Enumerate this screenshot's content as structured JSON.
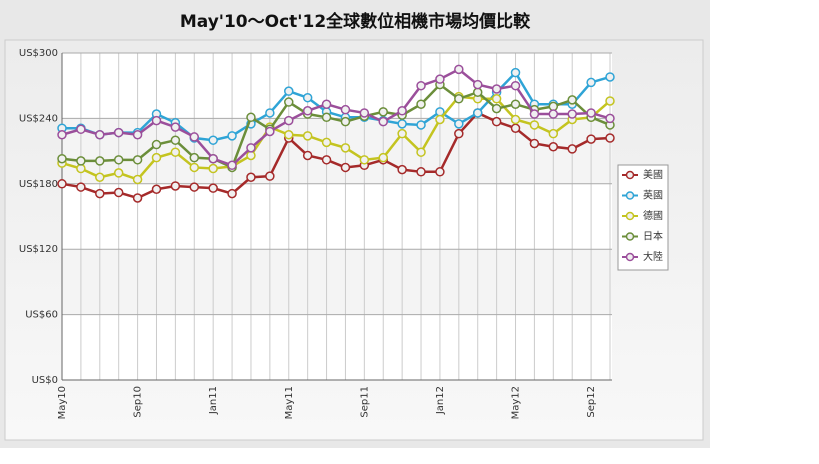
{
  "chart_data": {
    "type": "line",
    "title": "May'10～Oct'12全球數位相機市場均價比較",
    "categories": [
      "May10",
      null,
      null,
      null,
      "Sep10",
      null,
      null,
      null,
      "Jan11",
      null,
      null,
      null,
      "May11",
      null,
      null,
      null,
      "Sep11",
      null,
      null,
      null,
      "Jan12",
      null,
      null,
      null,
      "May12",
      null,
      null,
      null,
      "Sep12",
      null
    ],
    "ylim": [
      0,
      300
    ],
    "yticks": [
      {
        "value": 0,
        "label": "US$0"
      },
      {
        "value": 60,
        "label": "US$60"
      },
      {
        "value": 120,
        "label": "US$120"
      },
      {
        "value": 180,
        "label": "US$180"
      },
      {
        "value": 240,
        "label": "US$240"
      },
      {
        "value": 300,
        "label": "US$300"
      }
    ],
    "grid": true,
    "legend": "right",
    "series": [
      {
        "name": "美國",
        "color": "#a52a2a",
        "values": [
          180,
          177,
          171,
          172,
          167,
          175,
          178,
          177,
          176,
          171,
          186,
          187,
          222,
          206,
          202,
          195,
          197,
          202,
          193,
          191,
          191,
          226,
          245,
          237,
          231,
          217,
          214,
          212,
          221,
          222
        ]
      },
      {
        "name": "英國",
        "color": "#2fa4d6",
        "values": [
          231,
          231,
          225,
          227,
          227,
          244,
          236,
          222,
          220,
          224,
          235,
          245,
          265,
          259,
          246,
          241,
          241,
          238,
          235,
          234,
          246,
          235,
          245,
          264,
          282,
          253,
          253,
          253,
          273,
          278
        ]
      },
      {
        "name": "德國",
        "color": "#c4c420",
        "values": [
          199,
          194,
          186,
          190,
          184,
          204,
          209,
          195,
          194,
          196,
          206,
          232,
          225,
          224,
          218,
          213,
          202,
          204,
          226,
          209,
          239,
          260,
          258,
          258,
          239,
          234,
          226,
          239,
          241,
          256
        ]
      },
      {
        "name": "日本",
        "color": "#6b8e3a",
        "values": [
          203,
          201,
          201,
          202,
          202,
          216,
          220,
          204,
          203,
          195,
          241,
          230,
          255,
          244,
          241,
          237,
          242,
          246,
          243,
          253,
          271,
          258,
          264,
          249,
          253,
          248,
          251,
          257,
          241,
          234
        ]
      },
      {
        "name": "大陸",
        "color": "#9b4f9b",
        "values": [
          225,
          230,
          225,
          227,
          225,
          238,
          232,
          223,
          203,
          197,
          213,
          228,
          238,
          247,
          253,
          248,
          245,
          237,
          247,
          270,
          276,
          285,
          271,
          267,
          270,
          244,
          244,
          244,
          245,
          240
        ]
      }
    ]
  }
}
